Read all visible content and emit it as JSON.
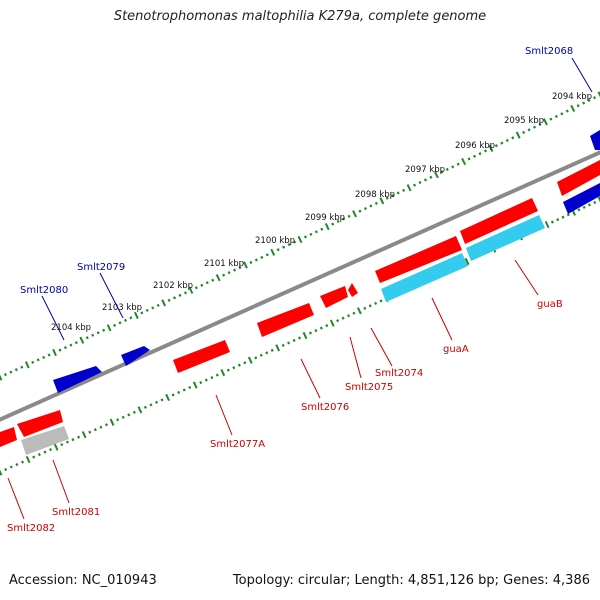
{
  "title": "Stenotrophomonas maltophilia K279a, complete genome",
  "footer": {
    "accession": "Accession: NC_010943",
    "summary": "Topology: circular; Length: 4,851,126 bp; Genes: 4,386"
  },
  "colors": {
    "forward": "#0000cc",
    "reverse": "#ff0000",
    "rna": "#33ccee",
    "pseudo": "#bbbbbb",
    "backbone": "#808080",
    "tick": "#228822",
    "forward_label": "#0000aa",
    "reverse_label": "#cc0000"
  },
  "scale_labels": [
    "2094 kbp",
    "2095 kbp",
    "2096 kbp",
    "2097 kbp",
    "2098 kbp",
    "2099 kbp",
    "2100 kbp",
    "2101 kbp",
    "2102 kbp",
    "2103 kbp",
    "2104 kbp"
  ],
  "genes": [
    {
      "name": "Smlt2068",
      "strand": "forward"
    },
    {
      "name": "Smlt2079",
      "strand": "forward"
    },
    {
      "name": "Smlt2080",
      "strand": "forward"
    },
    {
      "name": "guaB",
      "strand": "reverse"
    },
    {
      "name": "guaA",
      "strand": "reverse"
    },
    {
      "name": "Smlt2074",
      "strand": "reverse"
    },
    {
      "name": "Smlt2075",
      "strand": "reverse"
    },
    {
      "name": "Smlt2076",
      "strand": "reverse"
    },
    {
      "name": "Smlt2077A",
      "strand": "reverse"
    },
    {
      "name": "Smlt2081",
      "strand": "reverse"
    },
    {
      "name": "Smlt2082",
      "strand": "reverse"
    }
  ]
}
